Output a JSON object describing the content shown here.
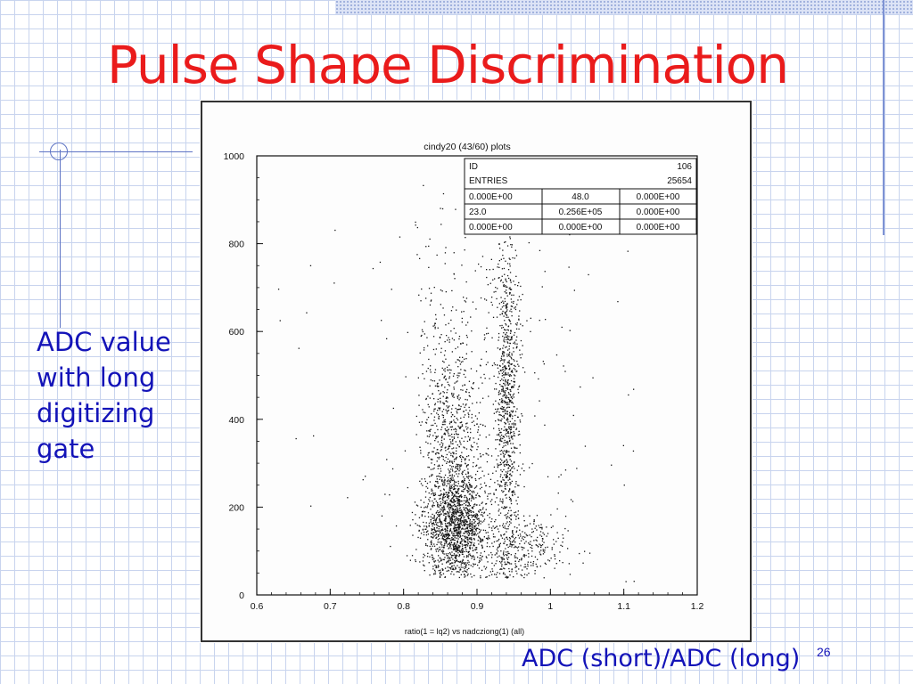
{
  "slide": {
    "title": "Pulse Shape Discrimination",
    "side_label_lines": [
      "ADC value",
      "with long",
      "digitizing",
      "gate"
    ],
    "bottom_label": "ADC (short)/ADC (long)",
    "page_number": "26"
  },
  "colors": {
    "title": "#ea1b1b",
    "text": "#1313b8",
    "grid": "#c8d4ee",
    "ink": "#111111"
  },
  "chart_data": {
    "type": "scatter",
    "title": "cindy20 (43/60) plots",
    "xlabel": "ratio(1 = lq2) vs nadcziong(1) (all)",
    "ylabel": "",
    "xlim": [
      0.6,
      1.2
    ],
    "ylim": [
      0,
      1000
    ],
    "x_ticks": [
      "0.6",
      "0.7",
      "0.8",
      "0.9",
      "1",
      "1.1",
      "1.2"
    ],
    "y_ticks": [
      "0",
      "200",
      "400",
      "600",
      "800",
      "1000"
    ],
    "grid": false,
    "legend": "none",
    "stats_box": {
      "rows": [
        [
          "ID",
          "106"
        ],
        [
          "ENTRIES",
          "25654"
        ],
        [
          "0.000E+00",
          "48.0",
          "0.000E+00"
        ],
        [
          "23.0",
          "0.256E+05",
          "0.000E+00"
        ],
        [
          "0.000E+00",
          "0.000E+00",
          "0.000E+00"
        ]
      ]
    },
    "series": [
      {
        "clusters": [
          {
            "x_center": 0.87,
            "y_center": 160,
            "x_spread": 0.022,
            "y_spread": 60,
            "relative_density": 0.38
          },
          {
            "x_center": 0.865,
            "y_center": 330,
            "x_spread": 0.02,
            "y_spread": 140,
            "relative_density": 0.22
          },
          {
            "x_center": 0.94,
            "y_center": 450,
            "x_spread": 0.008,
            "y_spread": 200,
            "relative_density": 0.25
          },
          {
            "x_center": 0.96,
            "y_center": 110,
            "x_spread": 0.03,
            "y_spread": 35,
            "relative_density": 0.08
          },
          {
            "x_center": 0.9,
            "y_center": 550,
            "x_spread": 0.05,
            "y_spread": 200,
            "relative_density": 0.07
          }
        ]
      }
    ]
  }
}
